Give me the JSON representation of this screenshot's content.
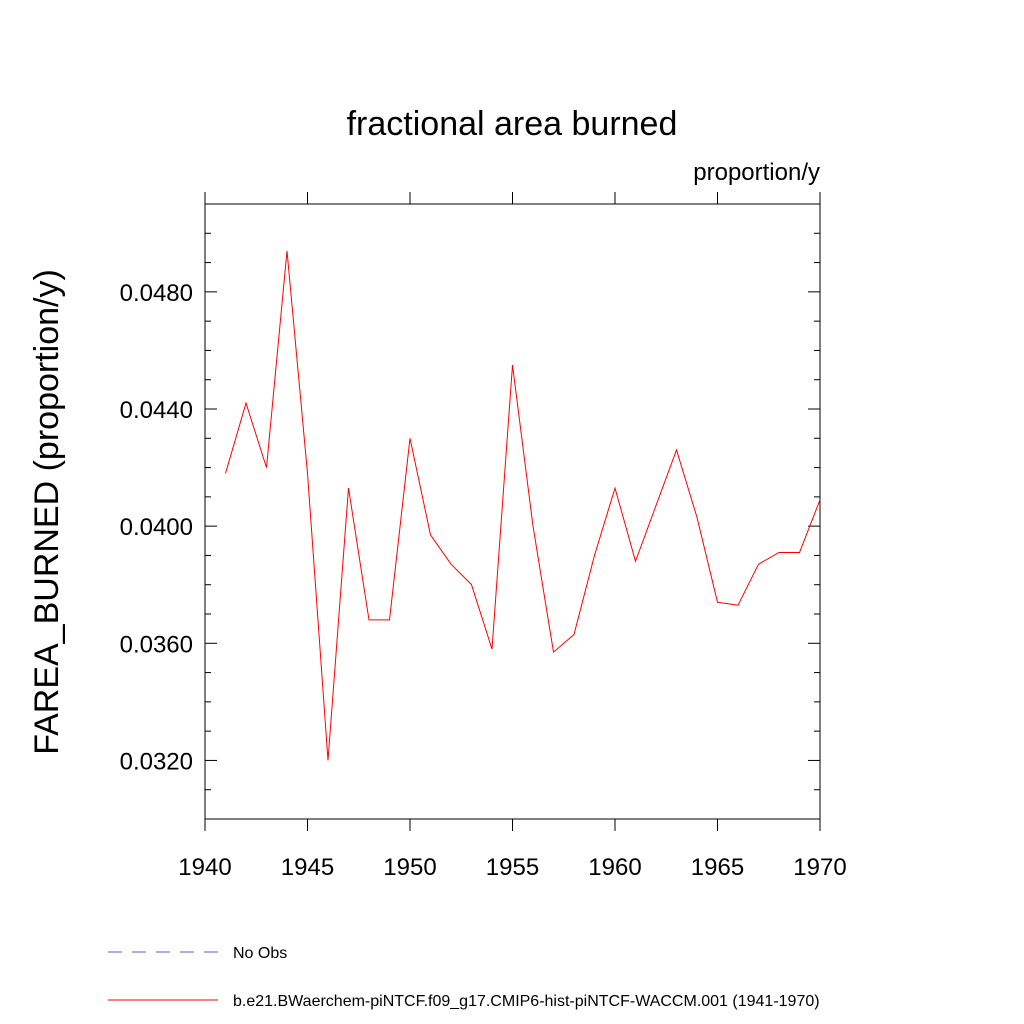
{
  "chart_data": {
    "type": "line",
    "title": "fractional area burned",
    "units_label": "proportion/y",
    "ylabel": "FAREA_BURNED  (proportion/y)",
    "xlabel": "",
    "xlim": [
      1940,
      1970
    ],
    "ylim": [
      0.03,
      0.051
    ],
    "x_ticks": [
      1940,
      1945,
      1950,
      1955,
      1960,
      1965,
      1970
    ],
    "x_tick_labels": [
      "1940",
      "1945",
      "1950",
      "1955",
      "1960",
      "1965",
      "1970"
    ],
    "y_ticks": [
      0.032,
      0.036,
      0.04,
      0.044,
      0.048
    ],
    "y_tick_labels": [
      "0.0320",
      "0.0360",
      "0.0400",
      "0.0440",
      "0.0480"
    ],
    "grid": false,
    "legend_position": "bottom",
    "series": [
      {
        "name": "No Obs",
        "color": "#6a5acd",
        "style": "dashed",
        "x": [],
        "y": []
      },
      {
        "name": "b.e21.BWaerchem-piNTCF.f09_g17.CMIP6-hist-piNTCF-WACCM.001 (1941-1970)",
        "color": "#ff0000",
        "style": "solid",
        "x": [
          1941,
          1942,
          1943,
          1944,
          1945,
          1946,
          1947,
          1948,
          1949,
          1950,
          1951,
          1952,
          1953,
          1954,
          1955,
          1956,
          1957,
          1958,
          1959,
          1960,
          1961,
          1962,
          1963,
          1964,
          1965,
          1966,
          1967,
          1968,
          1969,
          1970
        ],
        "y": [
          0.0418,
          0.0442,
          0.042,
          0.0494,
          0.0418,
          0.032,
          0.0413,
          0.0368,
          0.0368,
          0.043,
          0.0397,
          0.0387,
          0.038,
          0.0358,
          0.0455,
          0.04,
          0.0357,
          0.0363,
          0.039,
          0.0413,
          0.0388,
          0.0407,
          0.0426,
          0.0403,
          0.0374,
          0.0373,
          0.0387,
          0.0391,
          0.0391,
          0.0409
        ]
      }
    ]
  }
}
